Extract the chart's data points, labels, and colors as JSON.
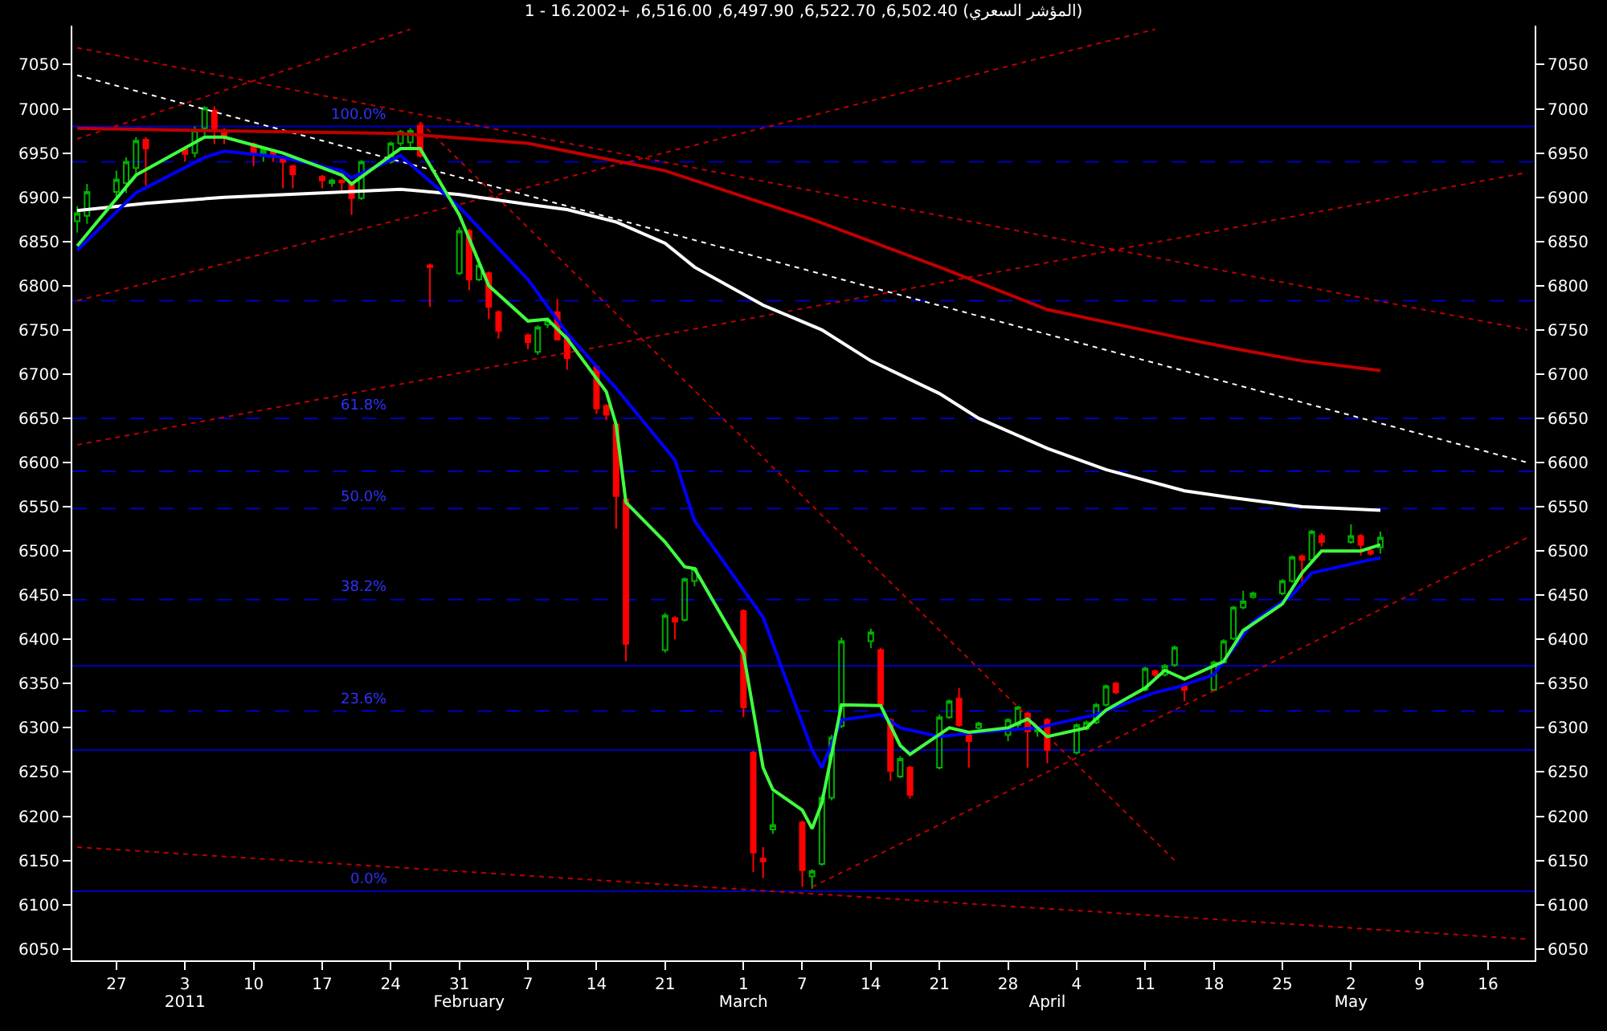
{
  "chart_data": {
    "type": "candlestick",
    "title": "1 - 16.2002+ ,6,516.00 ,6,497.90 ,6,522.70 ,6,502.40 (المؤشر السعري)",
    "x": [
      "2010-12-23",
      "2010-12-24",
      "2010-12-27",
      "2010-12-28",
      "2010-12-29",
      "2010-12-30",
      "2011-01-03",
      "2011-01-04",
      "2011-01-05",
      "2011-01-06",
      "2011-01-07",
      "2011-01-10",
      "2011-01-11",
      "2011-01-12",
      "2011-01-13",
      "2011-01-14",
      "2011-01-17",
      "2011-01-18",
      "2011-01-19",
      "2011-01-20",
      "2011-01-21",
      "2011-01-24",
      "2011-01-25",
      "2011-01-26",
      "2011-01-27",
      "2011-01-28",
      "2011-01-31",
      "2011-02-01",
      "2011-02-02",
      "2011-02-03",
      "2011-02-04",
      "2011-02-07",
      "2011-02-08",
      "2011-02-09",
      "2011-02-10",
      "2011-02-11",
      "2011-02-14",
      "2011-02-15",
      "2011-02-16",
      "2011-02-17",
      "2011-02-21",
      "2011-02-22",
      "2011-02-23",
      "2011-02-24",
      "2011-03-01",
      "2011-03-02",
      "2011-03-03",
      "2011-03-04",
      "2011-03-07",
      "2011-03-08",
      "2011-03-09",
      "2011-03-10",
      "2011-03-11",
      "2011-03-14",
      "2011-03-15",
      "2011-03-16",
      "2011-03-17",
      "2011-03-18",
      "2011-03-21",
      "2011-03-22",
      "2011-03-23",
      "2011-03-24",
      "2011-03-25",
      "2011-03-28",
      "2011-03-29",
      "2011-03-30",
      "2011-03-31",
      "2011-04-01",
      "2011-04-04",
      "2011-04-05",
      "2011-04-06",
      "2011-04-07",
      "2011-04-08",
      "2011-04-11",
      "2011-04-12",
      "2011-04-13",
      "2011-04-14",
      "2011-04-15",
      "2011-04-18",
      "2011-04-19",
      "2011-04-20",
      "2011-04-21",
      "2011-04-22",
      "2011-04-25",
      "2011-04-26",
      "2011-04-27",
      "2011-04-28",
      "2011-04-29",
      "2011-05-02",
      "2011-05-03",
      "2011-05-04",
      "2011-05-05"
    ],
    "series": [
      {
        "type": "line",
        "color": "#ffffff",
        "line_style": "dotted",
        "x": [
          "2010-12-23",
          "2011-05-20"
        ],
        "values": [
          7038,
          6600
        ]
      },
      {
        "type": "line",
        "color": "#c00000",
        "line_style": "dotted",
        "x": [
          "2010-12-23",
          "2011-05-20"
        ],
        "values": [
          7069,
          6750
        ]
      },
      {
        "type": "line",
        "color": "#c00000",
        "line_style": "dotted",
        "x": [
          "2010-12-23",
          "2011-01-26"
        ],
        "values": [
          6966,
          7090
        ]
      },
      {
        "type": "line",
        "color": "#c00000",
        "line_style": "dotted",
        "x": [
          "2010-12-23",
          "2011-04-12"
        ],
        "values": [
          6783,
          7090
        ]
      },
      {
        "type": "line",
        "color": "#c00000",
        "line_style": "dotted",
        "x": [
          "2010-12-23",
          "2011-05-20"
        ],
        "values": [
          6620,
          6928
        ]
      },
      {
        "type": "line",
        "color": "#c00000",
        "line_style": "dotted",
        "x": [
          "2010-12-23",
          "2011-05-20"
        ],
        "values": [
          6165,
          6061
        ]
      },
      {
        "type": "line",
        "color": "#c00000",
        "line_style": "dotted",
        "x": [
          "2011-01-27",
          "2011-04-14"
        ],
        "values": [
          6985,
          6150
        ]
      },
      {
        "type": "line",
        "color": "#c00000",
        "line_style": "dotted",
        "x": [
          "2011-03-08",
          "2011-05-20"
        ],
        "values": [
          6120,
          6515
        ]
      },
      {
        "type": "line",
        "color": "#c00000",
        "line_style": "solid",
        "axis": "y2",
        "x": [
          "2010-12-23",
          "2011-01-07",
          "2011-01-25",
          "2011-02-07",
          "2011-02-21",
          "2011-03-08",
          "2011-03-21",
          "2011-04-01",
          "2011-04-15",
          "2011-04-20",
          "2011-04-27",
          "2011-05-05"
        ],
        "values": [
          6978,
          6975,
          6972,
          6961,
          6930,
          6875,
          6821,
          6773,
          6740,
          6729,
          6715,
          6704
        ]
      },
      {
        "type": "line",
        "color": "#ffffff",
        "line_style": "solid",
        "x": [
          "2010-12-23",
          "2010-12-30",
          "2011-01-07",
          "2011-01-17",
          "2011-01-25",
          "2011-01-31",
          "2011-02-07",
          "2011-02-11",
          "2011-02-16",
          "2011-02-21",
          "2011-02-24",
          "2011-03-03",
          "2011-03-09",
          "2011-03-14",
          "2011-03-21",
          "2011-03-25",
          "2011-04-01",
          "2011-04-07",
          "2011-04-15",
          "2011-04-20",
          "2011-04-27",
          "2011-05-05"
        ],
        "values": [
          6885,
          6893,
          6900,
          6905,
          6909,
          6903,
          6892,
          6886,
          6872,
          6848,
          6821,
          6778,
          6750,
          6715,
          6678,
          6650,
          6616,
          6592,
          6568,
          6560,
          6550,
          6546
        ]
      },
      {
        "type": "line",
        "color": "#0000ff",
        "line_style": "solid",
        "x": [
          "2010-12-23",
          "2010-12-29",
          "2011-01-05",
          "2011-01-07",
          "2011-01-13",
          "2011-01-19",
          "2011-01-20",
          "2011-01-25",
          "2011-01-31",
          "2011-02-07",
          "2011-02-11",
          "2011-02-16",
          "2011-02-22",
          "2011-02-24",
          "2011-03-03",
          "2011-03-08",
          "2011-03-09",
          "2011-03-11",
          "2011-03-15",
          "2011-03-17",
          "2011-03-21",
          "2011-03-25",
          "2011-03-31",
          "2011-04-06",
          "2011-04-12",
          "2011-04-14",
          "2011-04-18",
          "2011-04-20",
          "2011-04-22",
          "2011-04-26",
          "2011-04-28",
          "2011-05-02",
          "2011-05-04",
          "2011-05-05"
        ],
        "values": [
          6840,
          6905,
          6945,
          6952,
          6945,
          6930,
          6922,
          6947,
          6889,
          6807,
          6746,
          6684,
          6603,
          6534,
          6425,
          6275,
          6255,
          6309,
          6315,
          6300,
          6290,
          6295,
          6300,
          6315,
          6340,
          6345,
          6360,
          6390,
          6420,
          6450,
          6475,
          6485,
          6490,
          6492
        ]
      },
      {
        "type": "line",
        "color": "#40ff40",
        "line_style": "solid",
        "x": [
          "2010-12-23",
          "2010-12-29",
          "2011-01-05",
          "2011-01-07",
          "2011-01-13",
          "2011-01-19",
          "2011-01-20",
          "2011-01-25",
          "2011-01-27",
          "2011-01-31",
          "2011-02-03",
          "2011-02-07",
          "2011-02-09",
          "2011-02-11",
          "2011-02-15",
          "2011-02-16",
          "2011-02-17",
          "2011-02-21",
          "2011-02-23",
          "2011-02-24",
          "2011-03-01",
          "2011-03-02",
          "2011-03-03",
          "2011-03-04",
          "2011-03-07",
          "2011-03-08",
          "2011-03-09",
          "2011-03-10",
          "2011-03-11",
          "2011-03-15",
          "2011-03-17",
          "2011-03-18",
          "2011-03-22",
          "2011-03-24",
          "2011-03-28",
          "2011-03-30",
          "2011-04-01",
          "2011-04-05",
          "2011-04-07",
          "2011-04-11",
          "2011-04-13",
          "2011-04-15",
          "2011-04-19",
          "2011-04-21",
          "2011-04-25",
          "2011-04-27",
          "2011-04-29",
          "2011-05-03",
          "2011-05-05"
        ],
        "values": [
          6845,
          6925,
          6968,
          6968,
          6950,
          6925,
          6915,
          6955,
          6955,
          6880,
          6800,
          6760,
          6762,
          6740,
          6680,
          6643,
          6555,
          6510,
          6482,
          6480,
          6384,
          6320,
          6255,
          6230,
          6207,
          6186,
          6215,
          6270,
          6326,
          6325,
          6280,
          6270,
          6300,
          6295,
          6300,
          6310,
          6290,
          6300,
          6320,
          6345,
          6365,
          6355,
          6375,
          6410,
          6440,
          6475,
          6500,
          6500,
          6507
        ]
      },
      {
        "colors": [
          "#00b000",
          "#00b000",
          "#00b000",
          "#00b000",
          "#00b000",
          "#ff0000",
          "#ff0000",
          "#00b000",
          "#00b000",
          "#ff0000",
          "#ff0000",
          "#ff0000",
          "#00b000",
          "#ff0000",
          "#ff0000",
          "#ff0000",
          "#ff0000",
          "#00b000",
          "#ff0000",
          "#ff0000",
          "#00b000",
          "#00b000",
          "#00b000",
          "#00b000",
          "#ff0000",
          "#ff0000",
          "#00b000",
          "#ff0000",
          "#00b000",
          "#ff0000",
          "#ff0000",
          "#ff0000",
          "#00b000",
          "#00b000",
          "#ff0000",
          "#ff0000",
          "#ff0000",
          "#ff0000",
          "#ff0000",
          "#ff0000",
          "#00b000",
          "#ff0000",
          "#00b000",
          "#00b000",
          "#ff0000",
          "#ff0000",
          "#ff0000",
          "#00b000",
          "#ff0000",
          "#00b000",
          "#00b000",
          "#00b000",
          "#00b000",
          "#00b000",
          "#ff0000",
          "#ff0000",
          "#00b000",
          "#ff0000",
          "#00b000",
          "#00b000",
          "#ff0000",
          "#ff0000",
          "#00b000",
          "#00b000",
          "#00b000",
          "#ff0000",
          "#00b000",
          "#ff0000",
          "#00b000",
          "#00b000",
          "#00b000",
          "#00b000",
          "#ff0000",
          "#00b000",
          "#ff0000",
          "#00b000",
          "#00b000",
          "#ff0000",
          "#00b000",
          "#00b000",
          "#00b000",
          "#00b000",
          "#00b000",
          "#00b000",
          "#00b000",
          "#ff0000",
          "#00b000",
          "#ff0000",
          "#00b000",
          "#ff0000",
          "#ff0000",
          "#00b000"
        ],
        "ohlc": [
          [
            6873,
            6890,
            6860,
            6882
          ],
          [
            6879,
            6915,
            6870,
            6906
          ],
          [
            6906,
            6930,
            6900,
            6920
          ],
          [
            6916,
            6945,
            6905,
            6940
          ],
          [
            6933,
            6968,
            6925,
            6964
          ],
          [
            6965,
            6968,
            6913,
            6955
          ],
          [
            6954,
            6956,
            6940,
            6949
          ],
          [
            6950,
            6980,
            6945,
            6976
          ],
          [
            6978,
            7003,
            6970,
            7001
          ],
          [
            6998,
            7003,
            6960,
            6978
          ],
          [
            6976,
            6978,
            6960,
            6967
          ],
          [
            6960,
            6962,
            6935,
            6949
          ],
          [
            6950,
            6956,
            6940,
            6954
          ],
          [
            6952,
            6954,
            6940,
            6949
          ],
          [
            6945,
            6947,
            6910,
            6940
          ],
          [
            6935,
            6937,
            6910,
            6926
          ],
          [
            6923,
            6925,
            6910,
            6919
          ],
          [
            6916,
            6921,
            6912,
            6919
          ],
          [
            6919,
            6920,
            6908,
            6917
          ],
          [
            6915,
            6917,
            6880,
            6899
          ],
          [
            6899,
            6942,
            6897,
            6940
          ],
          [
            6940,
            6963,
            6938,
            6961
          ],
          [
            6961,
            6976,
            6958,
            6974
          ],
          [
            6962,
            6978,
            6955,
            6975
          ],
          [
            6981,
            6985,
            6945,
            6947
          ],
          [
            6823,
            6825,
            6776,
            6821
          ],
          [
            6814,
            6866,
            6812,
            6862
          ],
          [
            6862,
            6864,
            6795,
            6807
          ],
          [
            6807,
            6831,
            6805,
            6823
          ],
          [
            6814,
            6816,
            6762,
            6776
          ],
          [
            6770,
            6772,
            6740,
            6749
          ],
          [
            6744,
            6746,
            6728,
            6736
          ],
          [
            6725,
            6755,
            6722,
            6753
          ],
          [
            6756,
            6762,
            6752,
            6761
          ],
          [
            6770,
            6785,
            6738,
            6739
          ],
          [
            6744,
            6746,
            6705,
            6718
          ],
          [
            6708,
            6710,
            6655,
            6661
          ],
          [
            6664,
            6666,
            6648,
            6654
          ],
          [
            6643,
            6645,
            6525,
            6562
          ],
          [
            6558,
            6560,
            6375,
            6395
          ],
          [
            6388,
            6430,
            6385,
            6427
          ],
          [
            6424,
            6426,
            6400,
            6420
          ],
          [
            6422,
            6470,
            6420,
            6468
          ],
          [
            6466,
            6482,
            6460,
            6480
          ],
          [
            6432,
            6434,
            6312,
            6323
          ],
          [
            6272,
            6274,
            6137,
            6159
          ],
          [
            6152,
            6165,
            6130,
            6149
          ],
          [
            6185,
            6227,
            6180,
            6190
          ],
          [
            6193,
            6195,
            6120,
            6139
          ],
          [
            6132,
            6140,
            6118,
            6138
          ],
          [
            6146,
            6224,
            6144,
            6221
          ],
          [
            6221,
            6292,
            6218,
            6289
          ],
          [
            6302,
            6402,
            6300,
            6398
          ],
          [
            6398,
            6412,
            6390,
            6408
          ],
          [
            6388,
            6390,
            6324,
            6326
          ],
          [
            6309,
            6311,
            6240,
            6251
          ],
          [
            6245,
            6268,
            6243,
            6265
          ],
          [
            6255,
            6257,
            6220,
            6224
          ],
          [
            6255,
            6315,
            6253,
            6312
          ],
          [
            6312,
            6332,
            6310,
            6330
          ],
          [
            6333,
            6345,
            6301,
            6303
          ],
          [
            6292,
            6294,
            6255,
            6285
          ],
          [
            6300,
            6307,
            6298,
            6305
          ],
          [
            6292,
            6311,
            6285,
            6309
          ],
          [
            6303,
            6325,
            6300,
            6323
          ],
          [
            6316,
            6318,
            6255,
            6296
          ],
          [
            6296,
            6301,
            6290,
            6299
          ],
          [
            6309,
            6311,
            6260,
            6275
          ],
          [
            6272,
            6305,
            6270,
            6303
          ],
          [
            6299,
            6308,
            6297,
            6306
          ],
          [
            6306,
            6328,
            6304,
            6326
          ],
          [
            6326,
            6349,
            6324,
            6347
          ],
          [
            6350,
            6352,
            6338,
            6340
          ],
          [
            6343,
            6369,
            6341,
            6367
          ],
          [
            6364,
            6366,
            6355,
            6360
          ],
          [
            6360,
            6372,
            6358,
            6370
          ],
          [
            6371,
            6393,
            6369,
            6391
          ],
          [
            6347,
            6349,
            6330,
            6343
          ],
          [
            6343,
            6376,
            6341,
            6374
          ],
          [
            6374,
            6400,
            6372,
            6398
          ],
          [
            6401,
            6438,
            6399,
            6436
          ],
          [
            6436,
            6455,
            6434,
            6443
          ],
          [
            6448,
            6454,
            6446,
            6452
          ],
          [
            6452,
            6468,
            6450,
            6466
          ],
          [
            6466,
            6495,
            6464,
            6493
          ],
          [
            6494,
            6496,
            6460,
            6490
          ],
          [
            6490,
            6524,
            6488,
            6522
          ],
          [
            6517,
            6520,
            6505,
            6510
          ],
          [
            6510,
            6530,
            6508,
            6517
          ],
          [
            6517,
            6519,
            6495,
            6507
          ],
          [
            6500,
            6502,
            6495,
            6497
          ],
          [
            6504,
            6522,
            6497,
            6515
          ]
        ]
      }
    ],
    "ref_lines": [
      {
        "axis": "y",
        "value": 6980,
        "color": "#0000c0",
        "line_style": "solid"
      },
      {
        "axis": "y",
        "value": 6940,
        "color": "#0000c0",
        "line_style": "dashed"
      },
      {
        "axis": "y",
        "value": 6783,
        "color": "#0000c0",
        "line_style": "dashed"
      },
      {
        "axis": "y",
        "value": 6650,
        "color": "#0000c0",
        "line_style": "dashed"
      },
      {
        "axis": "y",
        "value": 6590,
        "color": "#0000c0",
        "line_style": "dashed"
      },
      {
        "axis": "y",
        "value": 6548,
        "color": "#0000c0",
        "line_style": "dashed"
      },
      {
        "axis": "y",
        "value": 6445,
        "color": "#0000c0",
        "line_style": "dashed"
      },
      {
        "axis": "y",
        "value": 6370,
        "color": "#0000c0",
        "line_style": "solid"
      },
      {
        "axis": "y",
        "value": 6319,
        "color": "#0000c0",
        "line_style": "dashed"
      },
      {
        "axis": "y",
        "value": 6275,
        "color": "#0000c0",
        "line_style": "solid"
      },
      {
        "axis": "y",
        "value": 6115,
        "color": "#0000c0",
        "line_style": "solid"
      }
    ],
    "annotations": [
      {
        "text": "100.0%",
        "x": "2011-01-24",
        "y": 6980
      },
      {
        "text": "61.8%",
        "x": "2011-01-24",
        "y": 6650
      },
      {
        "text": "50.0%",
        "x": "2011-01-24",
        "y": 6548
      },
      {
        "text": "38.2%",
        "x": "2011-01-24",
        "y": 6445
      },
      {
        "text": "23.6%",
        "x": "2011-01-24",
        "y": 6319
      },
      {
        "text": "0.0%",
        "x": "2011-01-24",
        "y": 6115
      }
    ],
    "xlim": [
      "2010-12-22T12:00",
      "2011-05-20T18:00"
    ],
    "xticks": [
      {
        "value": "2010-12-27",
        "label": "27"
      },
      {
        "value": "2011-01-03",
        "label": "3"
      },
      {
        "value": "2011-01-10",
        "label": "10"
      },
      {
        "value": "2011-01-17",
        "label": "17"
      },
      {
        "value": "2011-01-24",
        "label": "24"
      },
      {
        "value": "2011-01-31",
        "label": "31"
      },
      {
        "value": "2011-02-07",
        "label": "7"
      },
      {
        "value": "2011-02-14",
        "label": "14"
      },
      {
        "value": "2011-02-21",
        "label": "21"
      },
      {
        "value": "2011-03-01",
        "label": "1"
      },
      {
        "value": "2011-03-07",
        "label": "7"
      },
      {
        "value": "2011-03-14",
        "label": "14"
      },
      {
        "value": "2011-03-21",
        "label": "21"
      },
      {
        "value": "2011-03-28",
        "label": "28"
      },
      {
        "value": "2011-04-04",
        "label": "4"
      },
      {
        "value": "2011-04-11",
        "label": "11"
      },
      {
        "value": "2011-04-18",
        "label": "18"
      },
      {
        "value": "2011-04-25",
        "label": "25"
      },
      {
        "value": "2011-05-02",
        "label": "2"
      },
      {
        "value": "2011-05-09",
        "label": "9"
      },
      {
        "value": "2011-05-16",
        "label": "16"
      }
    ],
    "x2lim": [
      "2010-12-22T12:00",
      "2011-05-20T18:00"
    ],
    "x2ticks": [
      {
        "value": "2011-01-03",
        "label": "2011"
      },
      {
        "value": "2011-02-01",
        "label": "February"
      },
      {
        "value": "2011-03-01",
        "label": "March"
      },
      {
        "value": "2011-04-01",
        "label": "April"
      },
      {
        "value": "2011-05-02",
        "label": "May"
      }
    ],
    "ylim": [
      6037,
      7094
    ],
    "yticks": [
      6050,
      6100,
      6150,
      6200,
      6250,
      6300,
      6350,
      6400,
      6450,
      6500,
      6550,
      6600,
      6650,
      6700,
      6750,
      6800,
      6850,
      6900,
      6950,
      7000,
      7050
    ],
    "y2lim": [
      6037,
      7094
    ],
    "y2ticks": [
      6050,
      6100,
      6150,
      6200,
      6250,
      6300,
      6350,
      6400,
      6450,
      6500,
      6550,
      6600,
      6650,
      6700,
      6750,
      6800,
      6850,
      6900,
      6950,
      7000,
      7050
    ]
  }
}
